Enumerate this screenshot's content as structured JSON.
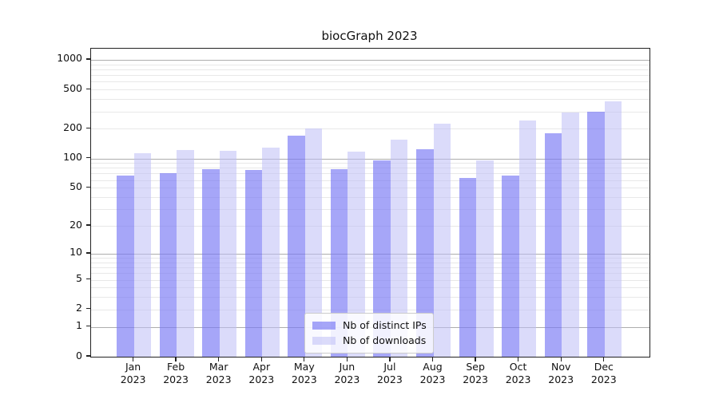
{
  "title": "biocGraph 2023",
  "legend": {
    "items": [
      {
        "label": "Nb of distinct IPs",
        "color": "rgba(120,120,245,0.66)"
      },
      {
        "label": "Nb of downloads",
        "color": "rgba(190,190,245,0.55)"
      }
    ]
  },
  "axes": {
    "y_tick_labels": [
      "1000",
      "500",
      "200",
      "100",
      "50",
      "20",
      "10",
      "5",
      "2",
      "1",
      "0"
    ],
    "x_year": "2023"
  },
  "colors": {
    "major_grid": "#adadad",
    "minor_grid": "#e8e8e8",
    "spine": "#222222",
    "text": "#111111",
    "bar_ips_rendered": "#aaaaf8",
    "bar_downloads_rendered": "#d9d9fa"
  },
  "chart_data": {
    "type": "bar",
    "title": "biocGraph 2023",
    "categories": [
      "Jan 2023",
      "Feb 2023",
      "Mar 2023",
      "Apr 2023",
      "May 2023",
      "Jun 2023",
      "Jul 2023",
      "Aug 2023",
      "Sep 2023",
      "Oct 2023",
      "Nov 2023",
      "Dec 2023"
    ],
    "months": [
      "Jan",
      "Feb",
      "Mar",
      "Apr",
      "May",
      "Jun",
      "Jul",
      "Aug",
      "Sep",
      "Oct",
      "Nov",
      "Dec"
    ],
    "year": "2023",
    "series": [
      {
        "name": "Nb of distinct IPs",
        "color": "rgba(120,120,245,0.66)",
        "values": [
          67,
          71,
          78,
          76,
          172,
          77,
          96,
          123,
          63,
          67,
          182,
          301
        ]
      },
      {
        "name": "Nb of downloads",
        "color": "rgba(190,190,245,0.55)",
        "values": [
          112,
          121,
          120,
          128,
          203,
          117,
          154,
          226,
          96,
          241,
          292,
          383
        ]
      }
    ],
    "yticks": [
      1000,
      500,
      200,
      100,
      50,
      20,
      10,
      5,
      2,
      1,
      0
    ],
    "yscale": "log10(1+y)  (log axis that can display 0)",
    "ylim": [
      0,
      1262
    ],
    "grid": true,
    "legend_position": "lower center",
    "xlabel": "",
    "ylabel": ""
  }
}
